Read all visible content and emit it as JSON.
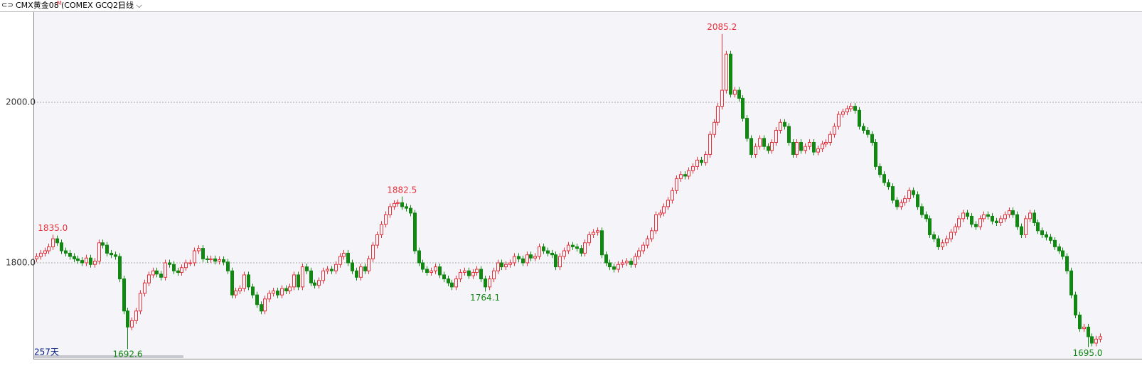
{
  "header": {
    "symbol": "CMX黄金08",
    "marker": "M",
    "code": "(COMEX GCQ2)",
    "period": "日线"
  },
  "chart_data": {
    "type": "candlestick",
    "count_label": "257天",
    "up_color": "#e8323c",
    "down_color": "#118811",
    "grid": true,
    "ylim": [
      1680.5,
      2112.4
    ],
    "yticks": [
      {
        "value": 1800,
        "label": "1800.0"
      },
      {
        "value": 2000,
        "label": "2000.0"
      }
    ],
    "extreme_labels": [
      {
        "value": 1835,
        "label": "1835.0"
      },
      1692.6,
      1882.5,
      1764.1,
      2085.2,
      {
        "value": 1695,
        "label": "1695.0"
      }
    ],
    "candles": [
      [
        1805,
        1812,
        1801,
        1808
      ],
      [
        1808,
        1816,
        1804,
        1812
      ],
      [
        1812,
        1819,
        1808,
        1815
      ],
      [
        1815,
        1824,
        1811,
        1820
      ],
      [
        1820,
        1835,
        1816,
        1830
      ],
      [
        1830,
        1834,
        1821,
        1825
      ],
      [
        1825,
        1829,
        1811,
        1815
      ],
      [
        1815,
        1819,
        1808,
        1812
      ],
      [
        1812,
        1816,
        1804,
        1808
      ],
      [
        1808,
        1812,
        1801,
        1805
      ],
      [
        1805,
        1809,
        1799,
        1803
      ],
      [
        1803,
        1807,
        1796,
        1800
      ],
      [
        1800,
        1810,
        1796,
        1806
      ],
      [
        1806,
        1810,
        1794,
        1798
      ],
      [
        1798,
        1806,
        1794,
        1802
      ],
      [
        1802,
        1829,
        1798,
        1825
      ],
      [
        1825,
        1829,
        1818,
        1822
      ],
      [
        1822,
        1826,
        1808,
        1812
      ],
      [
        1812,
        1816,
        1806,
        1810
      ],
      [
        1810,
        1814,
        1804,
        1808
      ],
      [
        1808,
        1812,
        1776,
        1780
      ],
      [
        1780,
        1784,
        1736,
        1740
      ],
      [
        1740,
        1744,
        1692.6,
        1720
      ],
      [
        1720,
        1732,
        1716,
        1728
      ],
      [
        1728,
        1744,
        1724,
        1740
      ],
      [
        1740,
        1766,
        1736,
        1762
      ],
      [
        1762,
        1779,
        1758,
        1775
      ],
      [
        1775,
        1789,
        1771,
        1785
      ],
      [
        1785,
        1794,
        1781,
        1790
      ],
      [
        1790,
        1794,
        1782,
        1786
      ],
      [
        1786,
        1790,
        1778,
        1782
      ],
      [
        1782,
        1804,
        1778,
        1800
      ],
      [
        1800,
        1804,
        1794,
        1798
      ],
      [
        1798,
        1802,
        1786,
        1790
      ],
      [
        1790,
        1794,
        1784,
        1788
      ],
      [
        1788,
        1798,
        1784,
        1794
      ],
      [
        1794,
        1804,
        1790,
        1800
      ],
      [
        1800,
        1804,
        1796,
        1800
      ],
      [
        1800,
        1819,
        1796,
        1815
      ],
      [
        1815,
        1822,
        1811,
        1818
      ],
      [
        1818,
        1822,
        1801,
        1805
      ],
      [
        1805,
        1809,
        1800,
        1804
      ],
      [
        1804,
        1809,
        1800,
        1805
      ],
      [
        1805,
        1809,
        1798,
        1802
      ],
      [
        1802,
        1808,
        1798,
        1804
      ],
      [
        1804,
        1808,
        1797,
        1801
      ],
      [
        1801,
        1805,
        1786,
        1790
      ],
      [
        1790,
        1794,
        1756,
        1760
      ],
      [
        1760,
        1769,
        1756,
        1765
      ],
      [
        1765,
        1772,
        1761,
        1768
      ],
      [
        1768,
        1789,
        1764,
        1785
      ],
      [
        1785,
        1789,
        1766,
        1770
      ],
      [
        1770,
        1774,
        1756,
        1760
      ],
      [
        1760,
        1764,
        1744,
        1748
      ],
      [
        1748,
        1752,
        1736,
        1740
      ],
      [
        1740,
        1759,
        1736,
        1755
      ],
      [
        1755,
        1766,
        1751,
        1762
      ],
      [
        1762,
        1769,
        1758,
        1765
      ],
      [
        1765,
        1769,
        1756,
        1760
      ],
      [
        1760,
        1772,
        1756,
        1768
      ],
      [
        1768,
        1772,
        1761,
        1765
      ],
      [
        1765,
        1774,
        1761,
        1770
      ],
      [
        1770,
        1789,
        1766,
        1785
      ],
      [
        1785,
        1789,
        1766,
        1770
      ],
      [
        1770,
        1799,
        1766,
        1795
      ],
      [
        1795,
        1799,
        1786,
        1790
      ],
      [
        1790,
        1794,
        1771,
        1775
      ],
      [
        1775,
        1779,
        1768,
        1772
      ],
      [
        1772,
        1782,
        1768,
        1778
      ],
      [
        1778,
        1794,
        1774,
        1790
      ],
      [
        1790,
        1796,
        1786,
        1792
      ],
      [
        1792,
        1796,
        1786,
        1790
      ],
      [
        1790,
        1802,
        1786,
        1798
      ],
      [
        1798,
        1812,
        1794,
        1808
      ],
      [
        1808,
        1816,
        1804,
        1812
      ],
      [
        1812,
        1816,
        1796,
        1800
      ],
      [
        1800,
        1804,
        1786,
        1790
      ],
      [
        1790,
        1794,
        1778,
        1782
      ],
      [
        1782,
        1799,
        1778,
        1795
      ],
      [
        1795,
        1799,
        1786,
        1790
      ],
      [
        1790,
        1809,
        1786,
        1805
      ],
      [
        1805,
        1826,
        1801,
        1822
      ],
      [
        1822,
        1839,
        1818,
        1835
      ],
      [
        1835,
        1852,
        1831,
        1848
      ],
      [
        1848,
        1864,
        1844,
        1860
      ],
      [
        1860,
        1874,
        1856,
        1870
      ],
      [
        1870,
        1878,
        1866,
        1874
      ],
      [
        1874,
        1879,
        1870,
        1875
      ],
      [
        1875,
        1882.5,
        1866,
        1870
      ],
      [
        1870,
        1874,
        1864,
        1868
      ],
      [
        1868,
        1872,
        1858,
        1862
      ],
      [
        1862,
        1866,
        1811,
        1815
      ],
      [
        1815,
        1819,
        1796,
        1800
      ],
      [
        1800,
        1804,
        1788,
        1792
      ],
      [
        1792,
        1796,
        1784,
        1788
      ],
      [
        1788,
        1794,
        1784,
        1790
      ],
      [
        1790,
        1799,
        1786,
        1795
      ],
      [
        1795,
        1799,
        1781,
        1785
      ],
      [
        1785,
        1789,
        1776,
        1780
      ],
      [
        1780,
        1784,
        1771,
        1775
      ],
      [
        1775,
        1779,
        1766,
        1770
      ],
      [
        1770,
        1784,
        1766,
        1780
      ],
      [
        1780,
        1792,
        1776,
        1788
      ],
      [
        1788,
        1794,
        1784,
        1790
      ],
      [
        1790,
        1794,
        1780,
        1784
      ],
      [
        1784,
        1792,
        1780,
        1788
      ],
      [
        1788,
        1796,
        1784,
        1792
      ],
      [
        1792,
        1796,
        1776,
        1780
      ],
      [
        1780,
        1784,
        1764.1,
        1770
      ],
      [
        1770,
        1784,
        1766,
        1780
      ],
      [
        1780,
        1794,
        1776,
        1790
      ],
      [
        1790,
        1804,
        1786,
        1800
      ],
      [
        1800,
        1804,
        1791,
        1795
      ],
      [
        1795,
        1802,
        1791,
        1798
      ],
      [
        1798,
        1804,
        1794,
        1800
      ],
      [
        1800,
        1812,
        1796,
        1808
      ],
      [
        1808,
        1812,
        1801,
        1805
      ],
      [
        1805,
        1809,
        1796,
        1800
      ],
      [
        1800,
        1814,
        1796,
        1810
      ],
      [
        1810,
        1814,
        1802,
        1806
      ],
      [
        1806,
        1812,
        1802,
        1808
      ],
      [
        1808,
        1824,
        1804,
        1820
      ],
      [
        1820,
        1824,
        1811,
        1815
      ],
      [
        1815,
        1819,
        1808,
        1812
      ],
      [
        1812,
        1816,
        1806,
        1810
      ],
      [
        1810,
        1814,
        1791,
        1795
      ],
      [
        1795,
        1812,
        1791,
        1808
      ],
      [
        1808,
        1819,
        1804,
        1815
      ],
      [
        1815,
        1826,
        1811,
        1822
      ],
      [
        1822,
        1826,
        1816,
        1820
      ],
      [
        1820,
        1824,
        1814,
        1818
      ],
      [
        1818,
        1822,
        1808,
        1812
      ],
      [
        1812,
        1829,
        1808,
        1825
      ],
      [
        1825,
        1839,
        1821,
        1835
      ],
      [
        1835,
        1842,
        1831,
        1838
      ],
      [
        1838,
        1844,
        1834,
        1840
      ],
      [
        1840,
        1844,
        1806,
        1810
      ],
      [
        1810,
        1814,
        1796,
        1800
      ],
      [
        1800,
        1804,
        1791,
        1795
      ],
      [
        1795,
        1799,
        1788,
        1792
      ],
      [
        1792,
        1802,
        1788,
        1798
      ],
      [
        1798,
        1804,
        1794,
        1800
      ],
      [
        1800,
        1806,
        1796,
        1802
      ],
      [
        1802,
        1806,
        1794,
        1798
      ],
      [
        1798,
        1812,
        1794,
        1808
      ],
      [
        1808,
        1819,
        1804,
        1815
      ],
      [
        1815,
        1826,
        1811,
        1822
      ],
      [
        1822,
        1834,
        1818,
        1830
      ],
      [
        1830,
        1844,
        1826,
        1840
      ],
      [
        1840,
        1864,
        1836,
        1860
      ],
      [
        1860,
        1866,
        1856,
        1862
      ],
      [
        1862,
        1874,
        1858,
        1870
      ],
      [
        1870,
        1882,
        1866,
        1878
      ],
      [
        1878,
        1894,
        1874,
        1890
      ],
      [
        1890,
        1909,
        1886,
        1905
      ],
      [
        1905,
        1914,
        1901,
        1910
      ],
      [
        1910,
        1914,
        1904,
        1908
      ],
      [
        1908,
        1919,
        1904,
        1915
      ],
      [
        1915,
        1924,
        1911,
        1920
      ],
      [
        1920,
        1932,
        1916,
        1928
      ],
      [
        1928,
        1932,
        1921,
        1925
      ],
      [
        1925,
        1939,
        1921,
        1935
      ],
      [
        1935,
        1964,
        1931,
        1960
      ],
      [
        1960,
        1979,
        1956,
        1975
      ],
      [
        1975,
        1999,
        1971,
        1995
      ],
      [
        1995,
        2085.2,
        1991,
        2015
      ],
      [
        2015,
        2064,
        2011,
        2060
      ],
      [
        2060,
        2064,
        2006,
        2010
      ],
      [
        2010,
        2019,
        2006,
        2015
      ],
      [
        2015,
        2019,
        2001,
        2005
      ],
      [
        2005,
        2009,
        1976,
        1980
      ],
      [
        1980,
        1984,
        1951,
        1955
      ],
      [
        1955,
        1959,
        1931,
        1935
      ],
      [
        1935,
        1949,
        1931,
        1945
      ],
      [
        1945,
        1959,
        1941,
        1955
      ],
      [
        1955,
        1959,
        1941,
        1945
      ],
      [
        1945,
        1949,
        1936,
        1940
      ],
      [
        1940,
        1954,
        1936,
        1950
      ],
      [
        1950,
        1969,
        1946,
        1965
      ],
      [
        1965,
        1979,
        1961,
        1975
      ],
      [
        1975,
        1979,
        1966,
        1970
      ],
      [
        1970,
        1974,
        1946,
        1950
      ],
      [
        1950,
        1954,
        1931,
        1935
      ],
      [
        1935,
        1954,
        1931,
        1950
      ],
      [
        1950,
        1954,
        1936,
        1940
      ],
      [
        1940,
        1949,
        1936,
        1945
      ],
      [
        1945,
        1954,
        1941,
        1950
      ],
      [
        1950,
        1954,
        1934,
        1938
      ],
      [
        1938,
        1946,
        1934,
        1942
      ],
      [
        1942,
        1952,
        1938,
        1948
      ],
      [
        1948,
        1954,
        1944,
        1950
      ],
      [
        1950,
        1964,
        1946,
        1960
      ],
      [
        1960,
        1974,
        1956,
        1970
      ],
      [
        1970,
        1989,
        1966,
        1985
      ],
      [
        1985,
        1992,
        1981,
        1988
      ],
      [
        1988,
        1996,
        1984,
        1992
      ],
      [
        1992,
        1999,
        1988,
        1995
      ],
      [
        1995,
        1999,
        1986,
        1990
      ],
      [
        1990,
        1994,
        1966,
        1970
      ],
      [
        1970,
        1974,
        1961,
        1965
      ],
      [
        1965,
        1969,
        1956,
        1960
      ],
      [
        1960,
        1964,
        1946,
        1950
      ],
      [
        1950,
        1954,
        1916,
        1920
      ],
      [
        1920,
        1924,
        1906,
        1910
      ],
      [
        1910,
        1914,
        1896,
        1900
      ],
      [
        1900,
        1904,
        1891,
        1895
      ],
      [
        1895,
        1899,
        1874,
        1878
      ],
      [
        1878,
        1882,
        1866,
        1870
      ],
      [
        1870,
        1879,
        1866,
        1875
      ],
      [
        1875,
        1884,
        1871,
        1880
      ],
      [
        1880,
        1894,
        1876,
        1890
      ],
      [
        1890,
        1894,
        1881,
        1885
      ],
      [
        1885,
        1889,
        1866,
        1870
      ],
      [
        1870,
        1874,
        1856,
        1860
      ],
      [
        1860,
        1864,
        1851,
        1855
      ],
      [
        1855,
        1859,
        1831,
        1835
      ],
      [
        1835,
        1839,
        1826,
        1830
      ],
      [
        1830,
        1834,
        1816,
        1820
      ],
      [
        1820,
        1829,
        1816,
        1825
      ],
      [
        1825,
        1834,
        1821,
        1830
      ],
      [
        1830,
        1842,
        1826,
        1838
      ],
      [
        1838,
        1849,
        1834,
        1845
      ],
      [
        1845,
        1859,
        1841,
        1855
      ],
      [
        1855,
        1866,
        1851,
        1862
      ],
      [
        1862,
        1866,
        1854,
        1858
      ],
      [
        1858,
        1862,
        1844,
        1848
      ],
      [
        1848,
        1852,
        1841,
        1845
      ],
      [
        1845,
        1859,
        1841,
        1855
      ],
      [
        1855,
        1864,
        1851,
        1860
      ],
      [
        1860,
        1864,
        1854,
        1858
      ],
      [
        1858,
        1862,
        1848,
        1852
      ],
      [
        1852,
        1856,
        1846,
        1850
      ],
      [
        1850,
        1859,
        1846,
        1855
      ],
      [
        1855,
        1864,
        1851,
        1860
      ],
      [
        1860,
        1869,
        1856,
        1865
      ],
      [
        1865,
        1869,
        1856,
        1860
      ],
      [
        1860,
        1864,
        1841,
        1845
      ],
      [
        1845,
        1849,
        1831,
        1835
      ],
      [
        1835,
        1859,
        1831,
        1855
      ],
      [
        1855,
        1866,
        1851,
        1862
      ],
      [
        1862,
        1866,
        1846,
        1850
      ],
      [
        1850,
        1854,
        1836,
        1840
      ],
      [
        1840,
        1844,
        1831,
        1835
      ],
      [
        1835,
        1839,
        1828,
        1832
      ],
      [
        1832,
        1836,
        1824,
        1828
      ],
      [
        1828,
        1832,
        1816,
        1820
      ],
      [
        1820,
        1824,
        1811,
        1815
      ],
      [
        1815,
        1819,
        1804,
        1808
      ],
      [
        1808,
        1812,
        1786,
        1790
      ],
      [
        1790,
        1794,
        1756,
        1760
      ],
      [
        1760,
        1764,
        1731,
        1735
      ],
      [
        1735,
        1739,
        1714,
        1718
      ],
      [
        1718,
        1724,
        1714,
        1720
      ],
      [
        1720,
        1724,
        1695,
        1708
      ],
      [
        1708,
        1712,
        1696,
        1700
      ],
      [
        1700,
        1709,
        1696,
        1705
      ],
      [
        1705,
        1712,
        1701,
        1708
      ]
    ]
  }
}
